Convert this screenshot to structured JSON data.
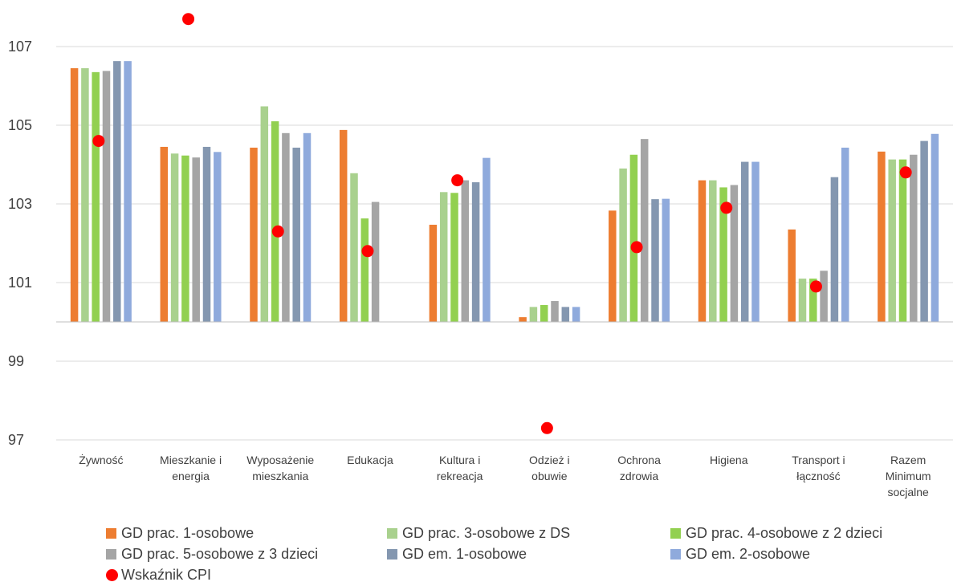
{
  "chart_data": {
    "type": "bar",
    "categories": [
      [
        "Żywność"
      ],
      [
        "Mieszkanie i",
        "energia"
      ],
      [
        "Wyposażenie",
        "mieszkania"
      ],
      [
        "Edukacja"
      ],
      [
        "Kultura i",
        "rekreacja"
      ],
      [
        "Odzież i",
        "obuwie"
      ],
      [
        "Ochrona",
        "zdrowia"
      ],
      [
        "Higiena"
      ],
      [
        "Transport i",
        "łączność"
      ],
      [
        "Razem",
        "Minimum",
        "socjalne"
      ]
    ],
    "series": [
      {
        "name": "GD prac. 1-osobowe",
        "color": "#ED7D31",
        "values": [
          106.45,
          104.45,
          104.43,
          104.88,
          102.47,
          100.12,
          102.83,
          103.6,
          102.35,
          104.33
        ]
      },
      {
        "name": "GD prac. 3-osobowe z DS",
        "color": "#A9D18E",
        "values": [
          106.45,
          104.28,
          105.48,
          103.78,
          103.3,
          100.38,
          103.9,
          103.6,
          101.1,
          104.13
        ]
      },
      {
        "name": "GD prac. 4-osobowe z 2 dzieci",
        "color": "#92D050",
        "values": [
          106.35,
          104.23,
          105.1,
          102.63,
          103.28,
          100.43,
          104.25,
          103.42,
          101.1,
          104.13
        ]
      },
      {
        "name": "GD prac. 5-osobowe z 3 dzieci",
        "color": "#A5A5A5",
        "values": [
          106.38,
          104.18,
          104.8,
          103.05,
          103.6,
          100.53,
          104.65,
          103.48,
          101.3,
          104.25
        ]
      },
      {
        "name": "GD em. 1-osobowe",
        "color": "#8497B0",
        "values": [
          106.63,
          104.45,
          104.43,
          null,
          103.55,
          100.38,
          103.12,
          104.07,
          103.68,
          104.6
        ]
      },
      {
        "name": "GD em. 2-osobowe",
        "color": "#8FAADC",
        "values": [
          106.63,
          104.32,
          104.8,
          null,
          104.17,
          100.38,
          103.13,
          104.07,
          104.43,
          104.78
        ]
      }
    ],
    "marker_series": {
      "name": "Wskaźnik CPI",
      "color": "#FF0000",
      "values": [
        104.6,
        107.7,
        102.3,
        101.8,
        103.6,
        97.3,
        101.9,
        102.9,
        100.9,
        103.8
      ]
    },
    "yticks": [
      97,
      99,
      101,
      103,
      105,
      107
    ],
    "ylim": [
      96.7,
      108.0
    ],
    "baseline": 100,
    "grid": true,
    "legend_position": "bottom"
  },
  "legend_items": [
    "GD prac. 1-osobowe",
    "GD prac. 3-osobowe z DS",
    "GD prac. 4-osobowe z 2 dzieci",
    "GD prac. 5-osobowe z 3 dzieci",
    "GD em. 1-osobowe",
    "GD em. 2-osobowe",
    "Wskaźnik CPI"
  ],
  "legend_colors": [
    "#ED7D31",
    "#A9D18E",
    "#92D050",
    "#A5A5A5",
    "#8497B0",
    "#8FAADC",
    "#FF0000"
  ]
}
